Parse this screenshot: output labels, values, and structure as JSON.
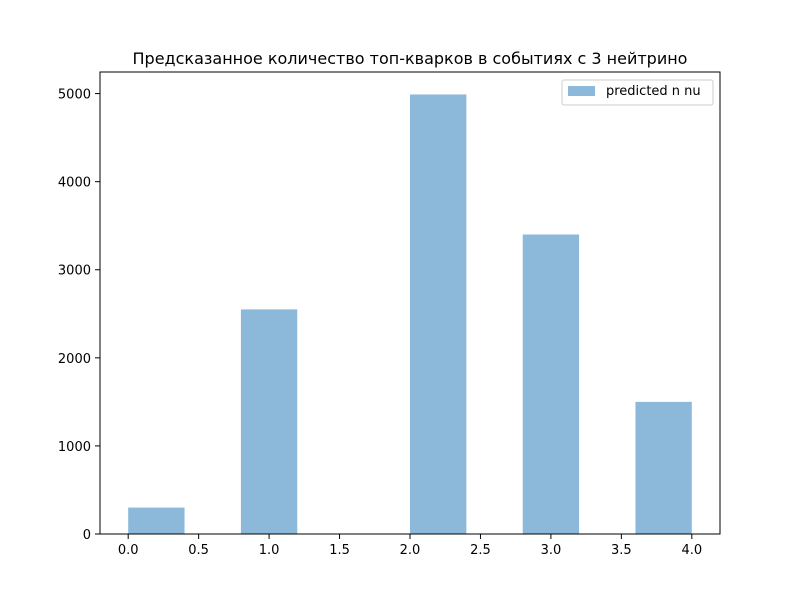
{
  "chart_data": {
    "type": "bar",
    "title": "Предсказанное количество топ-кварков в событиях с 3 нейтрино",
    "xlabel": "",
    "ylabel": "",
    "xlim": [
      -0.2,
      4.2
    ],
    "ylim": [
      0,
      5245
    ],
    "xticks": [
      0.0,
      0.5,
      1.0,
      1.5,
      2.0,
      2.5,
      3.0,
      3.5,
      4.0
    ],
    "xtick_labels": [
      "0.0",
      "0.5",
      "1.0",
      "1.5",
      "2.0",
      "2.5",
      "3.0",
      "3.5",
      "4.0"
    ],
    "yticks": [
      0,
      1000,
      2000,
      3000,
      4000,
      5000
    ],
    "ytick_labels": [
      "0",
      "1000",
      "2000",
      "3000",
      "4000",
      "5000"
    ],
    "grid": false,
    "legend": {
      "position": "top-right"
    },
    "series": [
      {
        "name": "predicted n nu",
        "color": "#8cb9da",
        "bins": [
          {
            "x0": 0.0,
            "x1": 0.4,
            "value": 300
          },
          {
            "x0": 0.8,
            "x1": 1.2,
            "value": 2550
          },
          {
            "x0": 1.2,
            "x1": 1.6,
            "value": 0
          },
          {
            "x0": 2.0,
            "x1": 2.4,
            "value": 4990
          },
          {
            "x0": 2.8,
            "x1": 3.2,
            "value": 3400
          },
          {
            "x0": 3.6,
            "x1": 4.0,
            "value": 1500
          }
        ]
      }
    ]
  }
}
